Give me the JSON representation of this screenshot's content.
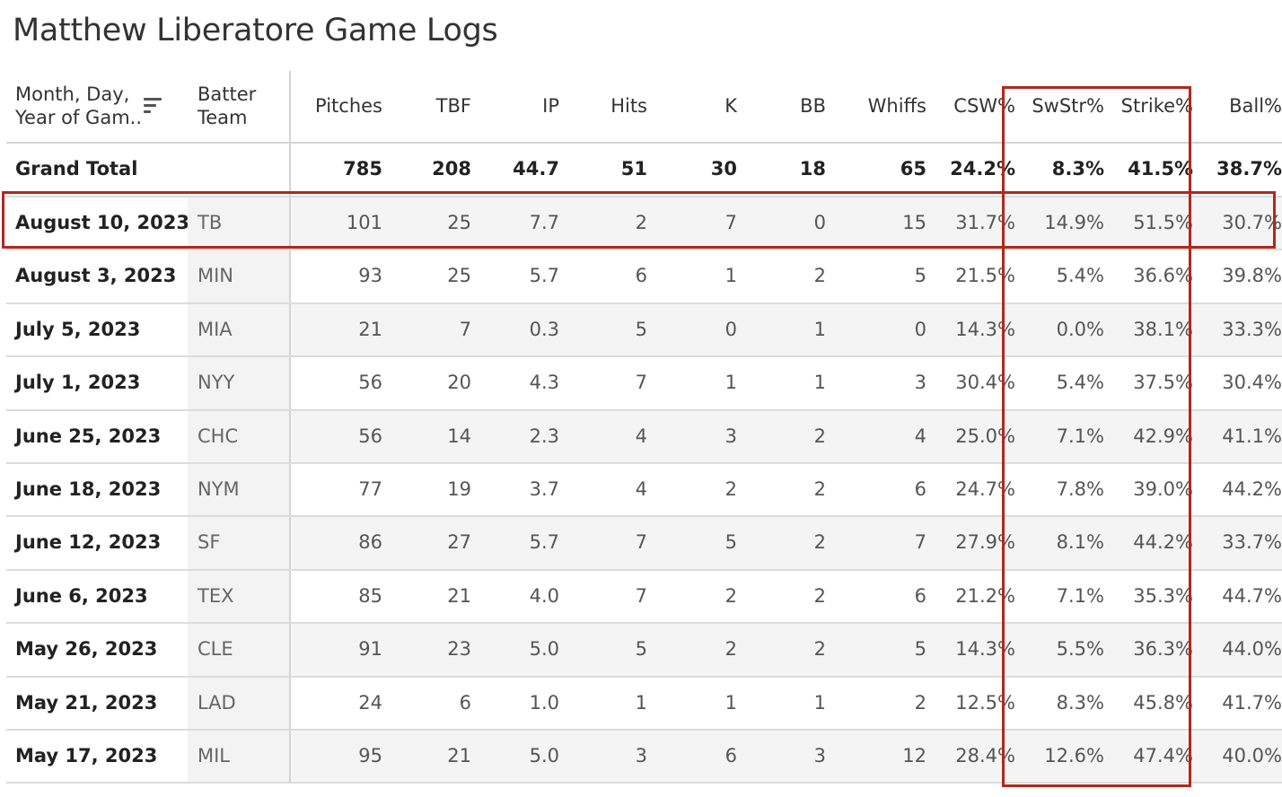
{
  "title": "Matthew Liberatore Game Logs",
  "accent_color": "#b0281f",
  "headers": {
    "date": "Month, Day, Year of Gam..",
    "date_line1": "Month, Day,",
    "date_line2": "Year of Gam..",
    "team_line1": "Batter",
    "team_line2": "Team",
    "pitches": "Pitches",
    "tbf": "TBF",
    "ip": "IP",
    "hits": "Hits",
    "k": "K",
    "bb": "BB",
    "whiffs": "Whiffs",
    "csw": "CSW%",
    "swstr": "SwStr%",
    "strike": "Strike%",
    "ball": "Ball%"
  },
  "sort_icon": "sort-descending-icon",
  "total": {
    "label": "Grand Total",
    "pitches": "785",
    "tbf": "208",
    "ip": "44.7",
    "hits": "51",
    "k": "30",
    "bb": "18",
    "whiffs": "65",
    "csw": "24.2%",
    "swstr": "8.3%",
    "strike": "41.5%",
    "ball": "38.7%"
  },
  "rows": [
    {
      "date": "August 10, 2023",
      "team": "TB",
      "pitches": "101",
      "tbf": "25",
      "ip": "7.7",
      "hits": "2",
      "k": "7",
      "bb": "0",
      "whiffs": "15",
      "csw": "31.7%",
      "swstr": "14.9%",
      "strike": "51.5%",
      "ball": "30.7%"
    },
    {
      "date": "August 3, 2023",
      "team": "MIN",
      "pitches": "93",
      "tbf": "25",
      "ip": "5.7",
      "hits": "6",
      "k": "1",
      "bb": "2",
      "whiffs": "5",
      "csw": "21.5%",
      "swstr": "5.4%",
      "strike": "36.6%",
      "ball": "39.8%"
    },
    {
      "date": "July 5, 2023",
      "team": "MIA",
      "pitches": "21",
      "tbf": "7",
      "ip": "0.3",
      "hits": "5",
      "k": "0",
      "bb": "1",
      "whiffs": "0",
      "csw": "14.3%",
      "swstr": "0.0%",
      "strike": "38.1%",
      "ball": "33.3%"
    },
    {
      "date": "July 1, 2023",
      "team": "NYY",
      "pitches": "56",
      "tbf": "20",
      "ip": "4.3",
      "hits": "7",
      "k": "1",
      "bb": "1",
      "whiffs": "3",
      "csw": "30.4%",
      "swstr": "5.4%",
      "strike": "37.5%",
      "ball": "30.4%"
    },
    {
      "date": "June 25, 2023",
      "team": "CHC",
      "pitches": "56",
      "tbf": "14",
      "ip": "2.3",
      "hits": "4",
      "k": "3",
      "bb": "2",
      "whiffs": "4",
      "csw": "25.0%",
      "swstr": "7.1%",
      "strike": "42.9%",
      "ball": "41.1%"
    },
    {
      "date": "June 18, 2023",
      "team": "NYM",
      "pitches": "77",
      "tbf": "19",
      "ip": "3.7",
      "hits": "4",
      "k": "2",
      "bb": "2",
      "whiffs": "6",
      "csw": "24.7%",
      "swstr": "7.8%",
      "strike": "39.0%",
      "ball": "44.2%"
    },
    {
      "date": "June 12, 2023",
      "team": "SF",
      "pitches": "86",
      "tbf": "27",
      "ip": "5.7",
      "hits": "7",
      "k": "5",
      "bb": "2",
      "whiffs": "7",
      "csw": "27.9%",
      "swstr": "8.1%",
      "strike": "44.2%",
      "ball": "33.7%"
    },
    {
      "date": "June 6, 2023",
      "team": "TEX",
      "pitches": "85",
      "tbf": "21",
      "ip": "4.0",
      "hits": "7",
      "k": "2",
      "bb": "2",
      "whiffs": "6",
      "csw": "21.2%",
      "swstr": "7.1%",
      "strike": "35.3%",
      "ball": "44.7%"
    },
    {
      "date": "May 26, 2023",
      "team": "CLE",
      "pitches": "91",
      "tbf": "23",
      "ip": "5.0",
      "hits": "5",
      "k": "2",
      "bb": "2",
      "whiffs": "5",
      "csw": "14.3%",
      "swstr": "5.5%",
      "strike": "36.3%",
      "ball": "44.0%"
    },
    {
      "date": "May 21, 2023",
      "team": "LAD",
      "pitches": "24",
      "tbf": "6",
      "ip": "1.0",
      "hits": "1",
      "k": "1",
      "bb": "1",
      "whiffs": "2",
      "csw": "12.5%",
      "swstr": "8.3%",
      "strike": "45.8%",
      "ball": "41.7%"
    },
    {
      "date": "May 17, 2023",
      "team": "MIL",
      "pitches": "95",
      "tbf": "21",
      "ip": "5.0",
      "hits": "3",
      "k": "6",
      "bb": "3",
      "whiffs": "12",
      "csw": "28.4%",
      "swstr": "12.6%",
      "strike": "47.4%",
      "ball": "40.0%"
    }
  ]
}
